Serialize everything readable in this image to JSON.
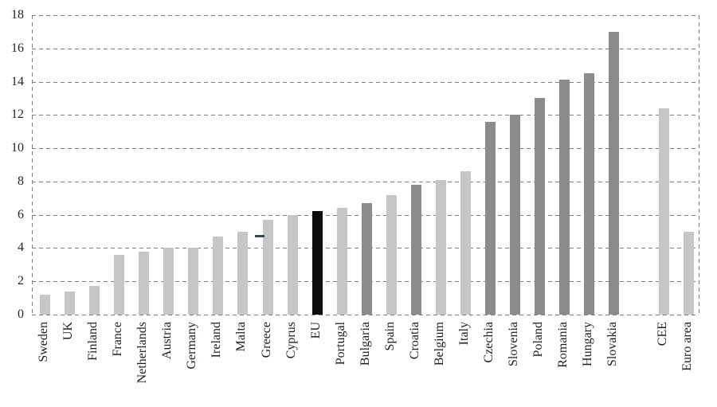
{
  "chart_data": {
    "type": "bar",
    "title": "",
    "xlabel": "",
    "ylabel": "",
    "ylim": [
      0,
      18
    ],
    "yticks": [
      0,
      2,
      4,
      6,
      8,
      10,
      12,
      14,
      16,
      18
    ],
    "grid": "dashed horizontal gridlines, dashed left and right plot borders, no solid axis lines",
    "legend_position": "none",
    "categories": [
      "Sweden",
      "UK",
      "Finland",
      "France",
      "Netherlands",
      "Austria",
      "Germany",
      "Ireland",
      "Malta",
      "Greece",
      "Cyprus",
      "EU",
      "Portugal",
      "Bulgaria",
      "Spain",
      "Croatia",
      "Belgium",
      "Italy",
      "Czechia",
      "Slovenia",
      "Poland",
      "Romania",
      "Hungary",
      "Slovakia",
      "CEE",
      "Euro area"
    ],
    "values": [
      1.2,
      1.4,
      1.7,
      3.6,
      3.8,
      4.0,
      4.0,
      4.7,
      5.0,
      5.7,
      6.0,
      6.2,
      6.4,
      6.7,
      7.2,
      7.8,
      8.1,
      8.6,
      11.6,
      12.0,
      13.0,
      14.1,
      14.5,
      17.0,
      12.4,
      5.0
    ],
    "bar_shades": [
      "light",
      "light",
      "light",
      "light",
      "light",
      "light",
      "light",
      "light",
      "light",
      "light",
      "light",
      "black",
      "light",
      "dark",
      "light",
      "dark",
      "light",
      "light",
      "dark",
      "dark",
      "dark",
      "dark",
      "dark",
      "dark",
      "light",
      "light"
    ],
    "gap_before": [
      "CEE"
    ],
    "marker": {
      "category": "Greece",
      "value": 4.7,
      "shape": "short horizontal dash left of bar"
    },
    "colors": {
      "light": "#c6c6c6",
      "dark": "#8b8b8b",
      "black": "#0d0d0d",
      "marker": "#37474f",
      "grid": "#7e7e7e",
      "axis_text": "#22262b"
    }
  }
}
